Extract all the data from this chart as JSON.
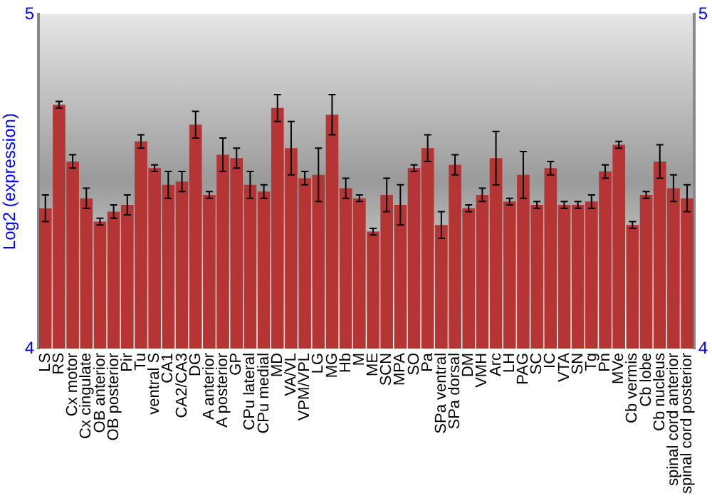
{
  "chart_data": {
    "type": "bar",
    "ylabel": "Log2 (expression)",
    "categories": [
      "LS",
      "RS",
      "Cx motor",
      "Cx cingulate",
      "OB anterior",
      "OB posterior",
      "Pir",
      "Tu",
      "ventral S",
      "CA1",
      "CA2/CA3",
      "DG",
      "A anterior",
      "A posterior",
      "GP",
      "CPu lateral",
      "CPu medial",
      "MD",
      "VA/VL",
      "VPM/VPL",
      "LG",
      "MG",
      "Hb",
      "M",
      "ME",
      "SCN",
      "MPA",
      "SO",
      "Pa",
      "SPa ventral",
      "SPa dorsal",
      "DM",
      "VMH",
      "Arc",
      "LH",
      "PAG",
      "SC",
      "IC",
      "VTA",
      "SN",
      "Tg",
      "Pn",
      "MVe",
      "Cb vermis",
      "Cb lobe",
      "Cb nucleus",
      "spinal cord anterior",
      "spinal cord posterior"
    ],
    "values": [
      4.42,
      4.73,
      4.56,
      4.45,
      4.38,
      4.41,
      4.43,
      4.62,
      4.54,
      4.49,
      4.5,
      4.67,
      4.46,
      4.58,
      4.57,
      4.49,
      4.47,
      4.72,
      4.6,
      4.51,
      4.52,
      4.7,
      4.48,
      4.45,
      4.35,
      4.46,
      4.43,
      4.54,
      4.6,
      4.37,
      4.55,
      4.42,
      4.46,
      4.57,
      4.44,
      4.52,
      4.43,
      4.54,
      4.43,
      4.43,
      4.44,
      4.53,
      4.61,
      4.37,
      4.46,
      4.56,
      4.48,
      4.45
    ],
    "errors": [
      0.04,
      0.01,
      0.02,
      0.03,
      0.01,
      0.02,
      0.03,
      0.02,
      0.01,
      0.04,
      0.03,
      0.04,
      0.01,
      0.05,
      0.03,
      0.04,
      0.02,
      0.04,
      0.08,
      0.02,
      0.08,
      0.06,
      0.03,
      0.01,
      0.01,
      0.05,
      0.06,
      0.01,
      0.04,
      0.04,
      0.03,
      0.01,
      0.02,
      0.08,
      0.01,
      0.07,
      0.01,
      0.02,
      0.01,
      0.01,
      0.02,
      0.02,
      0.01,
      0.01,
      0.01,
      0.05,
      0.04,
      0.04
    ],
    "color": "#b53535",
    "ylim": [
      4,
      5
    ],
    "yticks": [
      4,
      5
    ],
    "y2lim": [
      4,
      5
    ],
    "y2ticks": [
      4,
      5
    ],
    "grid": false,
    "legend": false
  }
}
